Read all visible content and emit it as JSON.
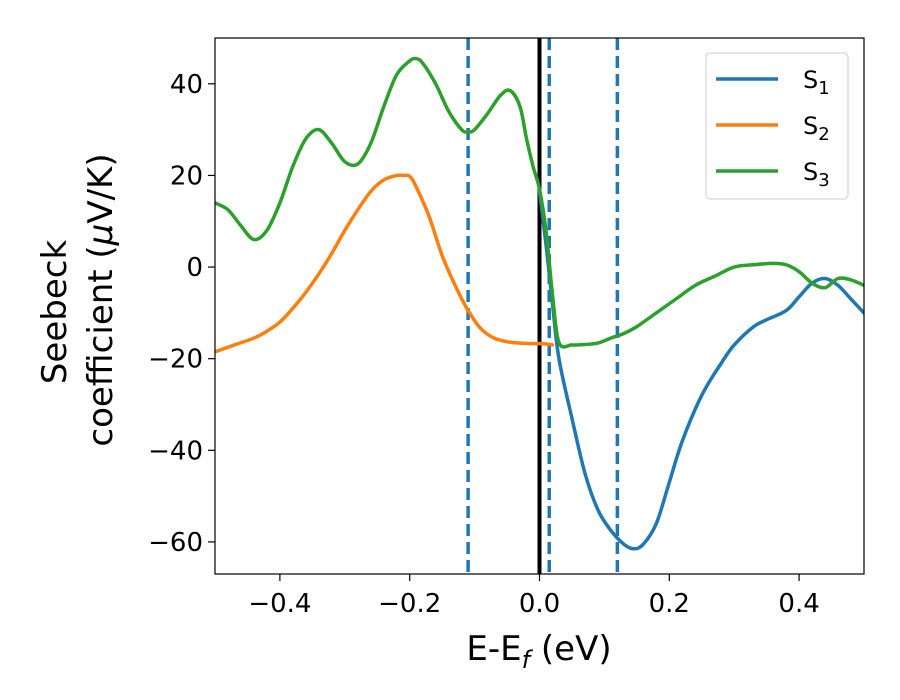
{
  "chart_data": {
    "type": "line",
    "xlabel": "E-E",
    "xlabel_sub": "f",
    "xlabel_unit": " (eV)",
    "ylabel_line1": "Seebeck",
    "ylabel_line2_prefix": "coefficient  (",
    "ylabel_mu": "μ",
    "ylabel_line2_suffix": "V/K)",
    "xlim": [
      -0.5,
      0.5
    ],
    "ylim": [
      -67,
      50
    ],
    "xticks": [
      -0.4,
      -0.2,
      0.0,
      0.2,
      0.4
    ],
    "xtick_labels": [
      "−0.4",
      "−0.2",
      "0.0",
      "0.2",
      "0.4"
    ],
    "yticks": [
      -60,
      -40,
      -20,
      0,
      20,
      40
    ],
    "ytick_labels": [
      "−60",
      "−40",
      "−20",
      "0",
      "20",
      "40"
    ],
    "grid": false,
    "legend_position": "top-right",
    "colors": {
      "S1": "#1f77b4",
      "S2": "#ff7f0e",
      "S3": "#2ca02c",
      "fermi": "#000000"
    },
    "vlines": [
      {
        "x": 0.0,
        "style": "solid",
        "color": "#000000"
      },
      {
        "x": -0.11,
        "style": "dashed",
        "color": "#1f77b4"
      },
      {
        "x": 0.015,
        "style": "dashed",
        "color": "#1f77b4"
      },
      {
        "x": 0.12,
        "style": "dashed",
        "color": "#1f77b4"
      }
    ],
    "series": [
      {
        "name": "S",
        "sub": "1",
        "color": "#1f77b4",
        "x": [
          0.0,
          0.01,
          0.02,
          0.03,
          0.05,
          0.07,
          0.09,
          0.11,
          0.13,
          0.145,
          0.16,
          0.18,
          0.2,
          0.22,
          0.25,
          0.28,
          0.3,
          0.33,
          0.35,
          0.38,
          0.4,
          0.42,
          0.44,
          0.46,
          0.48,
          0.5
        ],
        "y": [
          16.5,
          5.0,
          -8.0,
          -20.0,
          -33.0,
          -45.0,
          -53.0,
          -57.5,
          -60.5,
          -61.5,
          -60.5,
          -56.0,
          -47.0,
          -38.0,
          -28.0,
          -21.0,
          -17.0,
          -13.0,
          -11.5,
          -9.5,
          -6.5,
          -3.5,
          -2.5,
          -4.0,
          -7.0,
          -10.0
        ]
      },
      {
        "name": "S",
        "sub": "2",
        "color": "#ff7f0e",
        "x": [
          -0.5,
          -0.47,
          -0.44,
          -0.42,
          -0.4,
          -0.38,
          -0.36,
          -0.34,
          -0.32,
          -0.3,
          -0.28,
          -0.26,
          -0.24,
          -0.22,
          -0.21,
          -0.2,
          -0.19,
          -0.17,
          -0.15,
          -0.13,
          -0.11,
          -0.09,
          -0.07,
          -0.05,
          -0.03,
          -0.01,
          0.0,
          0.01,
          0.02
        ],
        "y": [
          -18.5,
          -17.0,
          -15.5,
          -14.0,
          -12.0,
          -9.0,
          -5.5,
          -1.5,
          3.0,
          8.0,
          12.5,
          16.5,
          19.0,
          20.0,
          20.0,
          19.8,
          17.5,
          11.0,
          2.5,
          -4.0,
          -9.5,
          -13.5,
          -15.5,
          -16.3,
          -16.6,
          -16.7,
          -16.7,
          -16.8,
          -17.0
        ]
      },
      {
        "name": "S",
        "sub": "3",
        "color": "#2ca02c",
        "x": [
          -0.5,
          -0.48,
          -0.46,
          -0.44,
          -0.42,
          -0.4,
          -0.38,
          -0.36,
          -0.34,
          -0.32,
          -0.3,
          -0.28,
          -0.26,
          -0.24,
          -0.22,
          -0.2,
          -0.19,
          -0.18,
          -0.16,
          -0.14,
          -0.12,
          -0.11,
          -0.1,
          -0.08,
          -0.06,
          -0.045,
          -0.03,
          -0.02,
          -0.01,
          0.0,
          0.01,
          0.02,
          0.03,
          0.05,
          0.07,
          0.09,
          0.11,
          0.13,
          0.15,
          0.18,
          0.21,
          0.24,
          0.27,
          0.3,
          0.33,
          0.36,
          0.38,
          0.4,
          0.42,
          0.44,
          0.46,
          0.48,
          0.5
        ],
        "y": [
          14.0,
          12.5,
          9.0,
          6.0,
          8.0,
          14.0,
          22.0,
          28.0,
          30.0,
          27.0,
          23.0,
          22.5,
          27.0,
          35.0,
          42.0,
          45.0,
          45.5,
          44.5,
          40.0,
          34.0,
          30.0,
          29.5,
          30.0,
          33.5,
          37.5,
          38.5,
          35.0,
          28.0,
          22.0,
          17.0,
          8.0,
          -6.0,
          -16.5,
          -17.0,
          -16.9,
          -16.6,
          -15.5,
          -14.5,
          -13.0,
          -10.0,
          -7.0,
          -4.0,
          -2.0,
          0.0,
          0.5,
          0.8,
          0.5,
          -1.0,
          -3.5,
          -4.5,
          -2.5,
          -2.8,
          -4.0
        ]
      }
    ]
  }
}
